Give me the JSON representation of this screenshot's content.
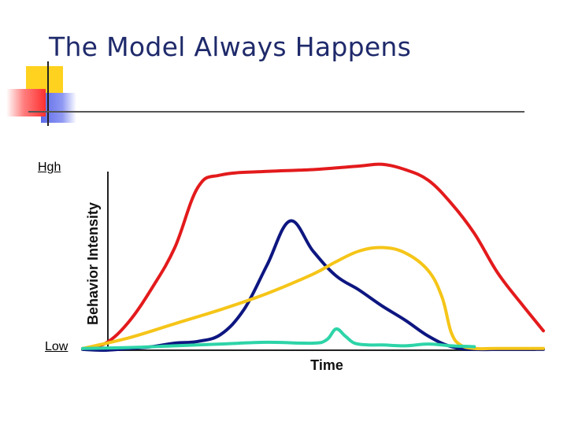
{
  "slide": {
    "title": "The Model Always Happens",
    "high_label": "Hgh",
    "low_label": "Low"
  },
  "colors": {
    "title": "#1f2a6b",
    "accent_yellow": "#ffd21f",
    "accent_blue": "#5d6be8",
    "accent_red": "#ff3030"
  },
  "chart_data": {
    "type": "line",
    "title": "",
    "xlabel": "Time",
    "ylabel": "Behavior Intensity",
    "xlim": [
      0,
      100
    ],
    "ylim": [
      0,
      100
    ],
    "grid": false,
    "legend": "none",
    "series": [
      {
        "color": "#e31a1c",
        "x": [
          0,
          5,
          10,
          15,
          20,
          25,
          30,
          40,
          50,
          60,
          65,
          70,
          75,
          80,
          85,
          90,
          95,
          100
        ],
        "y": [
          1,
          4,
          16,
          35,
          58,
          92,
          99,
          101,
          102,
          104,
          105,
          102,
          96,
          83,
          66,
          44,
          27,
          11
        ]
      },
      {
        "color": "#0d1680",
        "x": [
          0,
          5,
          10,
          15,
          20,
          25,
          30,
          35,
          40,
          45,
          50,
          55,
          60,
          65,
          70,
          75,
          80,
          85,
          90,
          100
        ],
        "y": [
          0.5,
          0,
          1,
          2,
          4,
          5,
          9,
          23,
          48,
          73,
          56,
          42,
          34,
          25,
          17,
          8,
          2,
          0.5,
          0.5,
          0.5
        ]
      },
      {
        "color": "#f5c518",
        "x": [
          0,
          10,
          20,
          30,
          40,
          50,
          55,
          60,
          65,
          70,
          75,
          78,
          80,
          82,
          85,
          90,
          100
        ],
        "y": [
          1,
          7,
          15,
          23,
          32,
          43,
          50,
          56,
          58,
          55,
          45,
          30,
          10,
          3,
          1,
          1,
          1
        ]
      },
      {
        "color": "#2dd4a8",
        "x": [
          0,
          10,
          20,
          30,
          40,
          50,
          53,
          55,
          57,
          59,
          62,
          65,
          70,
          75,
          80,
          85
        ],
        "y": [
          1,
          1.5,
          2.5,
          3.5,
          4.5,
          4,
          6,
          12,
          8,
          4,
          3,
          3,
          2.5,
          3.5,
          2.5,
          2
        ]
      }
    ]
  }
}
